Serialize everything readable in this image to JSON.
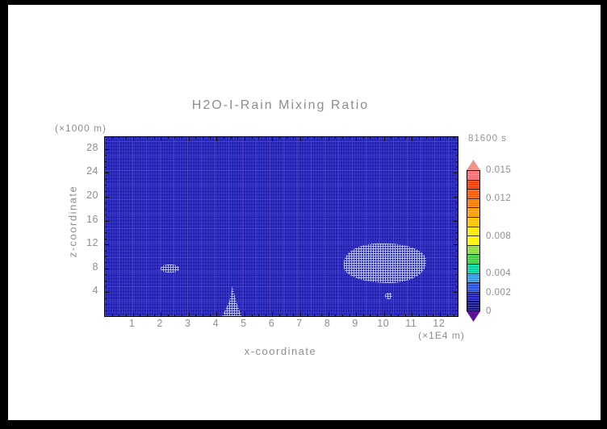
{
  "window": {
    "border_color": "#000000",
    "canvas_color": "#ffffff"
  },
  "chart_data": {
    "type": "heatmap",
    "title": "H2O-I-Rain Mixing Ratio",
    "time_label": "81600 s",
    "xlabel": "x-coordinate",
    "x_unit": "(×1E4 m)",
    "ylabel": "z-coordinate",
    "y_unit": "(×1000 m)",
    "xlim": [
      0,
      12.64
    ],
    "ylim": [
      0,
      30
    ],
    "x_major_ticks": [
      1,
      2,
      3,
      4,
      5,
      6,
      7,
      8,
      9,
      10,
      11,
      12
    ],
    "x_minor_step": 0.25,
    "y_major_ticks": [
      4,
      8,
      12,
      16,
      20,
      24,
      28
    ],
    "y_minor_step": 1,
    "field_summary": "Rain mixing ratio field is in the lowest color band (~0, dark blue) nearly everywhere at t=81600 s; small stippled patches mark slightly elevated values.",
    "background_value": 0,
    "elevated_regions": [
      {
        "shape": "spot",
        "x": [
          2.0,
          2.65
        ],
        "z": [
          7.3,
          8.6
        ]
      },
      {
        "shape": "triangle",
        "x": [
          4.2,
          4.9
        ],
        "z": [
          0.0,
          5.0
        ]
      },
      {
        "shape": "blob",
        "x": [
          8.55,
          11.5
        ],
        "z": [
          5.6,
          12.2
        ]
      },
      {
        "shape": "spot",
        "x": [
          10.05,
          10.3
        ],
        "z": [
          2.8,
          3.9
        ]
      }
    ],
    "plot_bg_color": "#2121ad",
    "stipple_color": "#c5d1f3",
    "colorbar": {
      "min": 0,
      "max": 0.015,
      "tick_values": [
        0,
        0.002,
        0.004,
        0.008,
        0.012,
        0.015
      ],
      "tick_labels": [
        "0",
        "0.002",
        "0.004",
        "0.008",
        "0.012",
        "0.015"
      ],
      "segment_colors_bottom_to_top": [
        "#16168a",
        "#1d1dbe",
        "#2553e8",
        "#2f9beb",
        "#00d49e",
        "#3fce3f",
        "#8cdc3c",
        "#fff500",
        "#ffeb00",
        "#ffc400",
        "#ff9e00",
        "#ff7c00",
        "#ff5a00",
        "#ff3c00",
        "#ff6f6f"
      ],
      "under_arrow_color": "#5e129b",
      "over_arrow_color": "#f2948a"
    }
  }
}
